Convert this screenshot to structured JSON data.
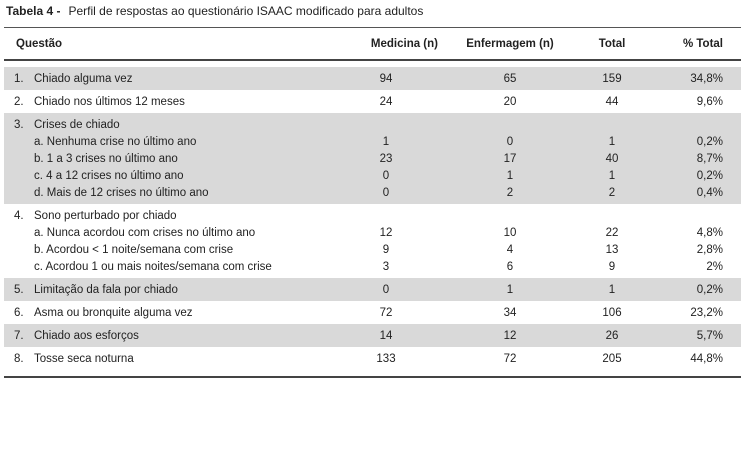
{
  "caption": {
    "label": "Tabela 4 -",
    "text": "Perfil de respostas ao questionário ISAAC modificado para adultos"
  },
  "headers": [
    "Questão",
    "Medicina (n)",
    "Enfermagem (n)",
    "Total",
    "% Total"
  ],
  "groups": [
    {
      "shade": true,
      "rows": [
        {
          "num": "1.",
          "label": "Chiado alguma vez",
          "medicina": "94",
          "enfermagem": "65",
          "total": "159",
          "pct": "34,8%"
        }
      ]
    },
    {
      "shade": false,
      "rows": [
        {
          "num": "2.",
          "label": "Chiado nos últimos 12 meses",
          "medicina": "24",
          "enfermagem": "20",
          "total": "44",
          "pct": "9,6%"
        }
      ]
    },
    {
      "shade": true,
      "rows": [
        {
          "num": "3.",
          "label": "Crises de chiado",
          "medicina": "",
          "enfermagem": "",
          "total": "",
          "pct": ""
        },
        {
          "num": "",
          "label": "a. Nenhuma crise no último ano",
          "medicina": "1",
          "enfermagem": "0",
          "total": "1",
          "pct": "0,2%"
        },
        {
          "num": "",
          "label": "b. 1 a 3 crises no último ano",
          "medicina": "23",
          "enfermagem": "17",
          "total": "40",
          "pct": "8,7%"
        },
        {
          "num": "",
          "label": "c. 4 a 12 crises no último ano",
          "medicina": "0",
          "enfermagem": "1",
          "total": "1",
          "pct": "0,2%"
        },
        {
          "num": "",
          "label": "d. Mais de 12 crises no último ano",
          "medicina": "0",
          "enfermagem": "2",
          "total": "2",
          "pct": "0,4%"
        }
      ]
    },
    {
      "shade": false,
      "rows": [
        {
          "num": "4.",
          "label": "Sono perturbado por chiado",
          "medicina": "",
          "enfermagem": "",
          "total": "",
          "pct": ""
        },
        {
          "num": "",
          "label": "a. Nunca acordou com crises no último ano",
          "medicina": "12",
          "enfermagem": "10",
          "total": "22",
          "pct": "4,8%"
        },
        {
          "num": "",
          "label": "b. Acordou < 1 noite/semana com crise",
          "medicina": "9",
          "enfermagem": "4",
          "total": "13",
          "pct": "2,8%"
        },
        {
          "num": "",
          "label": "c. Acordou 1 ou mais noites/semana com crise",
          "medicina": "3",
          "enfermagem": "6",
          "total": "9",
          "pct": "2%"
        }
      ]
    },
    {
      "shade": true,
      "rows": [
        {
          "num": "5.",
          "label": "Limitação da fala por chiado",
          "medicina": "0",
          "enfermagem": "1",
          "total": "1",
          "pct": "0,2%"
        }
      ]
    },
    {
      "shade": false,
      "rows": [
        {
          "num": "6.",
          "label": "Asma ou bronquite alguma vez",
          "medicina": "72",
          "enfermagem": "34",
          "total": "106",
          "pct": "23,2%"
        }
      ]
    },
    {
      "shade": true,
      "rows": [
        {
          "num": "7.",
          "label": "Chiado aos esforços",
          "medicina": "14",
          "enfermagem": "12",
          "total": "26",
          "pct": "5,7%"
        }
      ]
    },
    {
      "shade": false,
      "rows": [
        {
          "num": "8.",
          "label": "Tosse seca noturna",
          "medicina": "133",
          "enfermagem": "72",
          "total": "205",
          "pct": "44,8%"
        }
      ]
    }
  ]
}
